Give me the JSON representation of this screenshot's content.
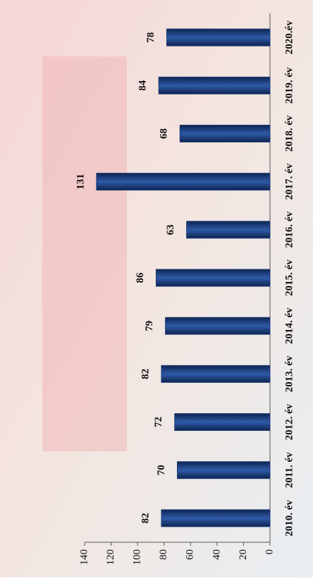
{
  "chart_data": {
    "type": "bar",
    "categories": [
      "2010. év",
      "2011. év",
      "2012. év",
      "2013. év",
      "2014. év",
      "2015. év",
      "2016. év",
      "2017. év",
      "2018. év",
      "2019. év",
      "2020.év"
    ],
    "values": [
      82,
      70,
      72,
      82,
      79,
      86,
      63,
      131,
      68,
      84,
      78
    ],
    "color": "#1d3c78",
    "ylim": [
      0,
      140
    ],
    "yticks": [
      0,
      20,
      40,
      60,
      80,
      100,
      120,
      140
    ]
  }
}
